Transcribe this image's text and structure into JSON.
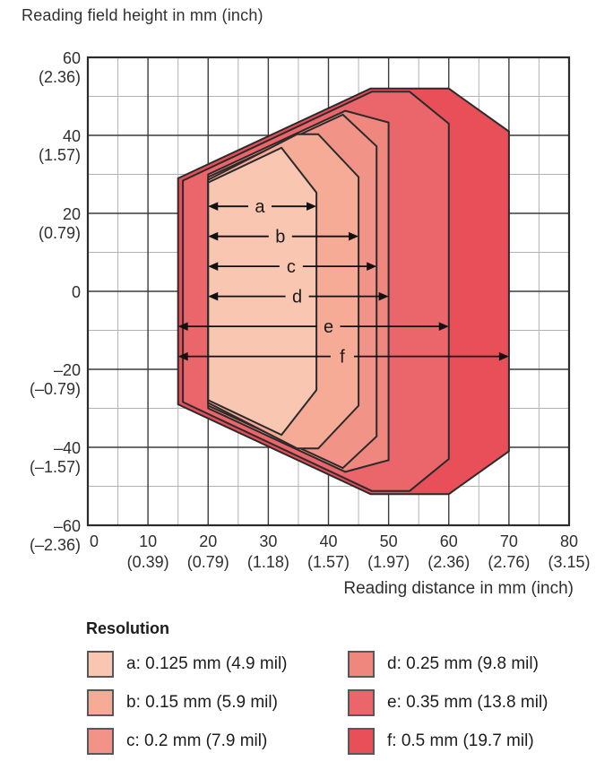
{
  "title": "Reading field height in mm (inch)",
  "x_axis_title": "Reading distance in mm (inch)",
  "legend": {
    "heading": "Resolution",
    "columns": [
      [
        "a",
        "b",
        "c"
      ],
      [
        "d",
        "e",
        "f"
      ]
    ],
    "items": {
      "a": {
        "label": "a: 0.125 mm (4.9 mil)",
        "color": "#f8c6b1"
      },
      "b": {
        "label": "b: 0.15 mm (5.9 mil)",
        "color": "#f5ab95"
      },
      "c": {
        "label": "c: 0.2 mm (7.9 mil)",
        "color": "#f29387"
      },
      "d": {
        "label": "d: 0.25 mm (9.8 mil)",
        "color": "#f0877f"
      },
      "e": {
        "label": "e: 0.35 mm (13.8 mil)",
        "color": "#eb666b"
      },
      "f": {
        "label": "f: 0.5 mm (19.7 mil)",
        "color": "#e84f59"
      }
    }
  },
  "chart_data": {
    "type": "area",
    "title": "Reading field height in mm (inch)",
    "xlabel": "Reading distance in mm (inch)",
    "ylabel": "Reading field height in mm (inch)",
    "xlim": [
      0,
      80
    ],
    "ylim": [
      -60,
      60
    ],
    "grid": {
      "x_major_mm": 10,
      "x_minor_mm": 5,
      "y_major_mm": 20,
      "y_minor_mm": 10
    },
    "x_ticks": [
      {
        "value": 0,
        "mm": "0",
        "inch": ""
      },
      {
        "value": 10,
        "mm": "10",
        "inch": "(0.39)"
      },
      {
        "value": 20,
        "mm": "20",
        "inch": "(0.79)"
      },
      {
        "value": 30,
        "mm": "30",
        "inch": "(1.18)"
      },
      {
        "value": 40,
        "mm": "40",
        "inch": "(1.57)"
      },
      {
        "value": 50,
        "mm": "50",
        "inch": "(1.97)"
      },
      {
        "value": 60,
        "mm": "60",
        "inch": "(2.36)"
      },
      {
        "value": 70,
        "mm": "70",
        "inch": "(2.76)"
      },
      {
        "value": 80,
        "mm": "80",
        "inch": "(3.15)"
      }
    ],
    "y_ticks": [
      {
        "value": 60,
        "mm": "60",
        "inch": "(2.36)"
      },
      {
        "value": 40,
        "mm": "40",
        "inch": "(1.57)"
      },
      {
        "value": 20,
        "mm": "20",
        "inch": "(0.79)"
      },
      {
        "value": 0,
        "mm": "0",
        "inch": ""
      },
      {
        "value": -20,
        "mm": "–20",
        "inch": "(–0.79)"
      },
      {
        "value": -40,
        "mm": "–40",
        "inch": "(–1.57)"
      },
      {
        "value": -60,
        "mm": "–60",
        "inch": "(–2.36)"
      }
    ],
    "series": [
      {
        "id": "f",
        "resolution": "0.5 mm (19.7 mil)",
        "color": "#e84f59",
        "upper_vertices_mm": [
          [
            15,
            29
          ],
          [
            47,
            52
          ],
          [
            60,
            52
          ],
          [
            70,
            41
          ]
        ]
      },
      {
        "id": "e",
        "resolution": "0.35 mm (13.8 mil)",
        "color": "#eb666b",
        "upper_vertices_mm": [
          [
            15.8,
            28.4
          ],
          [
            47.2,
            51.2
          ],
          [
            53.5,
            51.2
          ],
          [
            60,
            43
          ]
        ]
      },
      {
        "id": "d",
        "resolution": "0.25 mm (9.8 mil)",
        "color": "#f0877f",
        "upper_vertices_mm": [
          [
            20,
            30
          ],
          [
            42.8,
            46.3
          ],
          [
            50,
            43.3
          ]
        ]
      },
      {
        "id": "c",
        "resolution": "0.2 mm (7.9 mil)",
        "color": "#f29387",
        "upper_vertices_mm": [
          [
            20,
            29.3
          ],
          [
            42.4,
            45.3
          ],
          [
            48,
            37.2
          ]
        ]
      },
      {
        "id": "b",
        "resolution": "0.15 mm (5.9 mil)",
        "color": "#f5ab95",
        "upper_vertices_mm": [
          [
            20,
            28.6
          ],
          [
            34.8,
            40.3
          ],
          [
            38.3,
            40.3
          ],
          [
            45,
            29.3
          ]
        ]
      },
      {
        "id": "a",
        "resolution": "0.125 mm (4.9 mil)",
        "color": "#f8c6b1",
        "upper_vertices_mm": [
          [
            20,
            27.9
          ],
          [
            32.2,
            36.8
          ],
          [
            38,
            25.3
          ]
        ]
      }
    ],
    "range_arrows": [
      {
        "label": "a",
        "y_mm": 21.8,
        "x1_mm": 20,
        "x2_mm": 38,
        "label_x_mm": 28.6
      },
      {
        "label": "b",
        "y_mm": 14.1,
        "x1_mm": 20,
        "x2_mm": 45,
        "label_x_mm": 32.0
      },
      {
        "label": "c",
        "y_mm": 6.4,
        "x1_mm": 20,
        "x2_mm": 48,
        "label_x_mm": 33.8
      },
      {
        "label": "d",
        "y_mm": -1.3,
        "x1_mm": 20,
        "x2_mm": 50,
        "label_x_mm": 34.8
      },
      {
        "label": "e",
        "y_mm": -9.0,
        "x1_mm": 15,
        "x2_mm": 60,
        "label_x_mm": 40.0
      },
      {
        "label": "f",
        "y_mm": -16.7,
        "x1_mm": 15,
        "x2_mm": 70,
        "label_x_mm": 42.3
      }
    ],
    "style": {
      "grid_major_color": "#3c3c3c",
      "grid_minor_color": "#b3b3b3",
      "border_color": "#2b2b2b",
      "polygon_stroke": "#2b2b2b",
      "arrow_color": "#111111",
      "text_color": "#2f2f2f"
    }
  }
}
